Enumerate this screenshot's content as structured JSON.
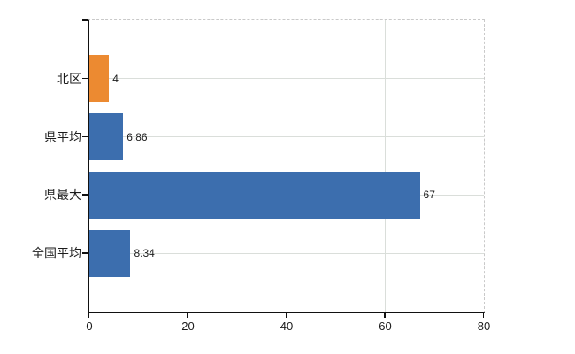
{
  "chart_data": {
    "type": "bar",
    "orientation": "horizontal",
    "title": "",
    "xlabel": "",
    "ylabel": "",
    "categories": [
      "北区",
      "県平均",
      "県最大",
      "全国平均"
    ],
    "values": [
      4,
      6.86,
      67,
      8.34
    ],
    "value_labels": [
      "4",
      "6.86",
      "67",
      "8.34"
    ],
    "bar_colors": [
      "#EC8A31",
      "#3C6EAE",
      "#3C6EAE",
      "#3C6EAE"
    ],
    "x_ticks": [
      0,
      20,
      40,
      60,
      80
    ],
    "x_tick_labels": [
      "0",
      "20",
      "40",
      "60",
      "80"
    ],
    "xlim": [
      0,
      80
    ],
    "grid": true,
    "legend": false
  },
  "colors": {
    "bar_orange": "#EC8A31",
    "bar_blue": "#3C6EAE",
    "gridline": "#dadeda",
    "frame_dashed": "#c9c9c9",
    "axis": "#111111",
    "text": "#1c1c1c",
    "background": "#ffffff"
  }
}
